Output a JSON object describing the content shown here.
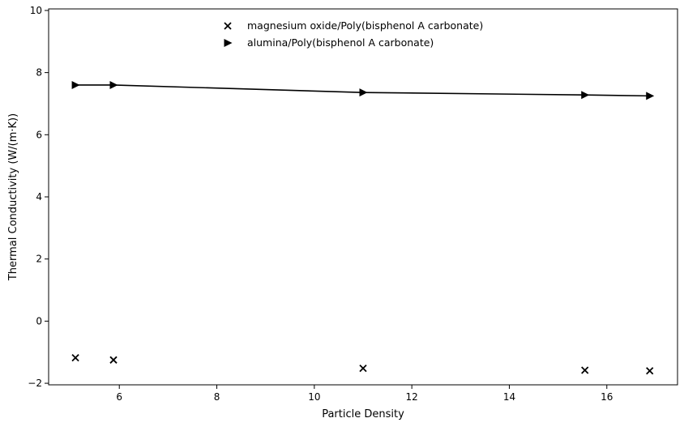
{
  "chart_data": {
    "type": "scatter",
    "title": "",
    "xlabel": "Particle Density",
    "ylabel": "Thermal Conductivity (W/(m·K))",
    "xlim": [
      4.55,
      17.45
    ],
    "ylim": [
      -2.05,
      10.05
    ],
    "xticks": [
      6,
      8,
      10,
      12,
      14,
      16
    ],
    "yticks": [
      -2,
      0,
      2,
      4,
      6,
      8,
      10
    ],
    "grid": false,
    "legend_position": "top-center",
    "series": [
      {
        "name": "magnesium oxide/Poly(bisphenol A carbonate)",
        "marker": "x",
        "line": false,
        "color": "#000000",
        "x": [
          5.1,
          5.88,
          11.0,
          15.55,
          16.88
        ],
        "y": [
          -1.18,
          -1.25,
          -1.52,
          -1.58,
          -1.6
        ]
      },
      {
        "name": "alumina/Poly(bisphenol A carbonate)",
        "marker": "triangle-right",
        "line": true,
        "color": "#000000",
        "x": [
          5.1,
          5.88,
          11.0,
          15.55,
          16.88
        ],
        "y": [
          7.6,
          7.6,
          7.36,
          7.28,
          7.25
        ]
      }
    ]
  }
}
